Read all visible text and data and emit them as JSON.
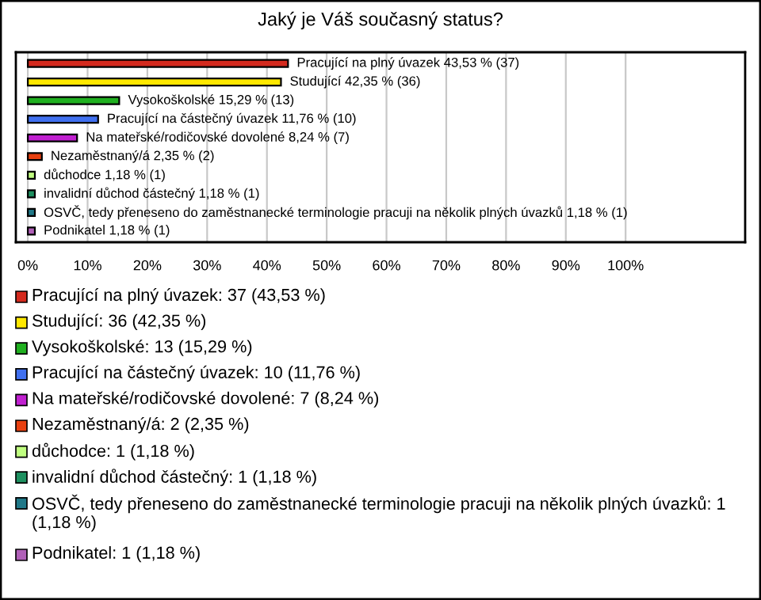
{
  "chart_data": {
    "type": "bar",
    "orientation": "horizontal",
    "title": "Jaký je Váš současný status?",
    "categories": [
      null,
      null,
      null,
      null,
      null,
      null,
      null,
      null,
      null,
      null
    ],
    "values": [
      43.53,
      42.35,
      15.29,
      11.76,
      8.24,
      2.35,
      1.18,
      1.18,
      1.18,
      1.18
    ],
    "colors": [
      "#d42a1e",
      "#ffe800",
      "#20b020",
      "#4070f0",
      "#c020d0",
      "#e84010",
      "#c0ff80",
      "#1e9060",
      "#207888",
      "#b060b8"
    ],
    "value_labels": [
      "Pracující na plný úvazek 43,53 % (37)",
      "Studující 42,35 % (36)",
      "Vysokoškolské 15,29 % (13)",
      "Pracující na částečný úvazek 11,76 % (10)",
      "Na mateřské/rodičovské dovolené 8,24 % (7)",
      "Nezaměstnaný/á 2,35 % (2)",
      "důchodce 1,18 % (1)",
      "invalidní důchod částečný 1,18 % (1)",
      "OSVČ, tedy přeneseno do zaměstnanecké terminologie pracuji na několik plných úvazků 1,18 % (1)",
      "Podnikatel 1,18 % (1)"
    ],
    "xlim": [
      -2,
      120
    ],
    "xticks": [
      {
        "value": 0,
        "label": "0%"
      },
      {
        "value": 10,
        "label": "10%"
      },
      {
        "value": 20,
        "label": "20%"
      },
      {
        "value": 30,
        "label": "30%"
      },
      {
        "value": 40,
        "label": "40%"
      },
      {
        "value": 50,
        "label": "50%"
      },
      {
        "value": 60,
        "label": "60%"
      },
      {
        "value": 70,
        "label": "70%"
      },
      {
        "value": 80,
        "label": "80%"
      },
      {
        "value": 90,
        "label": "90%"
      },
      {
        "value": 100,
        "label": "100%"
      }
    ],
    "grid": "x",
    "annotations": [
      "Pracující na plný úvazek: 37 (43,53 %)",
      "Studující: 36 (42,35 %)",
      "Vysokoškolské: 13 (15,29 %)",
      "Pracující na částečný úvazek: 10 (11,76 %)",
      "Na mateřské/rodičovské dovolené: 7 (8,24 %)",
      "Nezaměstnaný/á: 2 (2,35 %)",
      "důchodce: 1 (1,18 %)",
      "invalidní důchod částečný: 1 (1,18 %)",
      "OSVČ, tedy přeneseno do zaměstnanecké terminologie pracuji na několik plných úvazků: 1 (1,18 %)",
      "Podnikatel: 1 (1,18 %)"
    ]
  }
}
